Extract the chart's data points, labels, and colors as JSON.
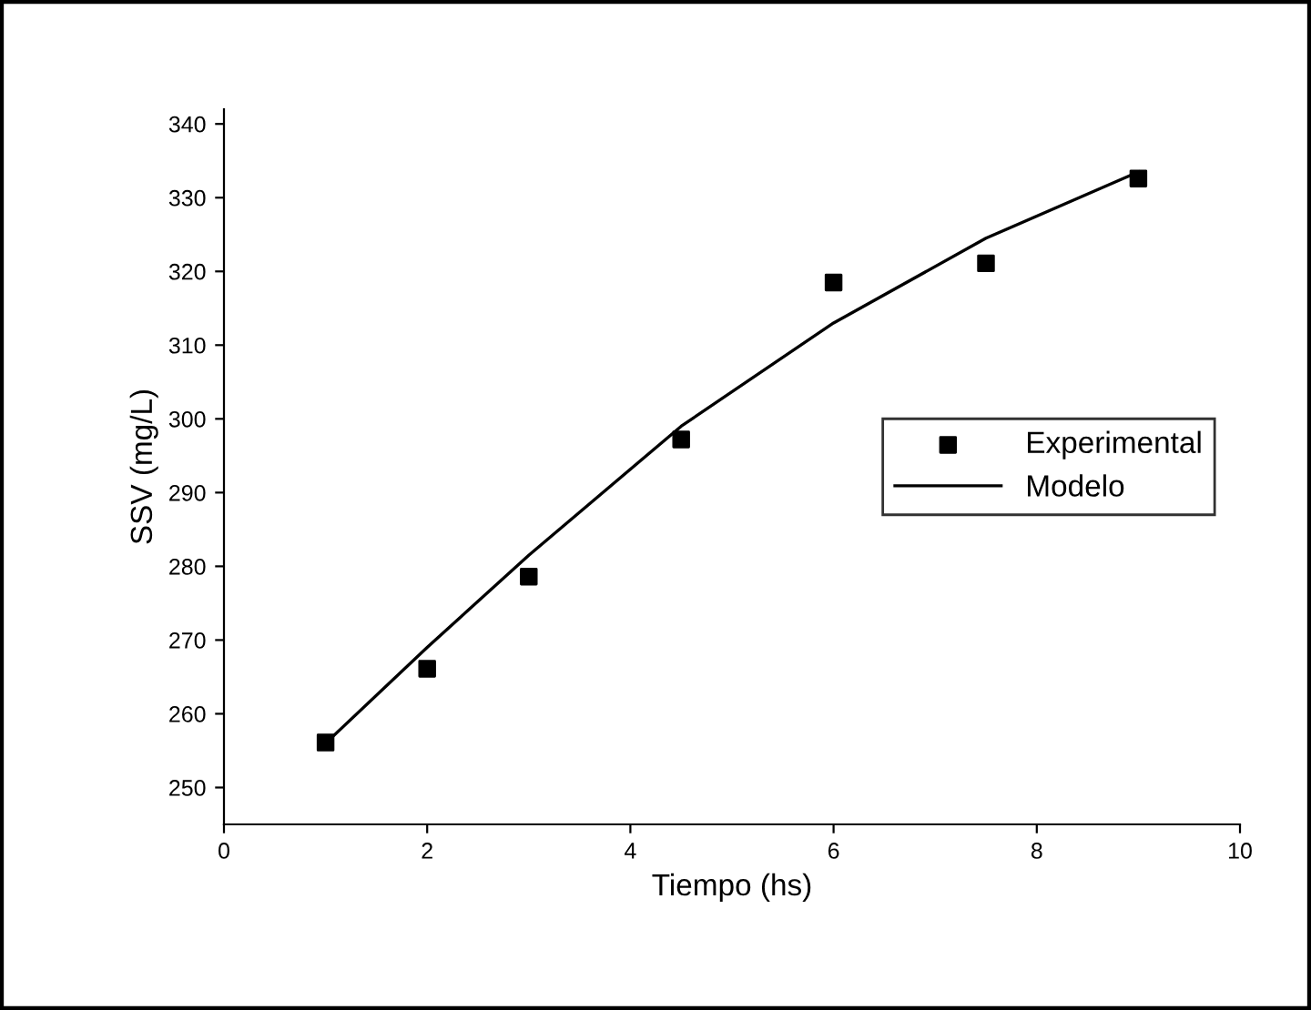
{
  "chart_data": {
    "type": "scatter",
    "xlabel": "Tiempo (hs)",
    "ylabel": "SSV (mg/L)",
    "xlim": [
      0,
      10
    ],
    "xticks": [
      0,
      2,
      4,
      6,
      8,
      10
    ],
    "ylim": [
      245,
      342
    ],
    "yticks": [
      250,
      260,
      270,
      280,
      290,
      300,
      310,
      320,
      330,
      340
    ],
    "grid": false,
    "legend": "right",
    "series": [
      {
        "name": "Experimental",
        "marker": "square",
        "color": "#000000",
        "x": [
          1,
          2,
          3,
          4.5,
          6,
          7.5,
          9
        ],
        "values": [
          256.1,
          266.1,
          278.6,
          297.2,
          318.5,
          321.1,
          332.6
        ]
      },
      {
        "name": "Modelo",
        "type": "line",
        "marker": "none",
        "line_style": "solid",
        "color": "#000000",
        "x": [
          1,
          2,
          3,
          4.5,
          6,
          7.5,
          9
        ],
        "values": [
          256.0,
          269.0,
          281.5,
          299.0,
          313.0,
          324.5,
          333.5
        ]
      }
    ]
  }
}
